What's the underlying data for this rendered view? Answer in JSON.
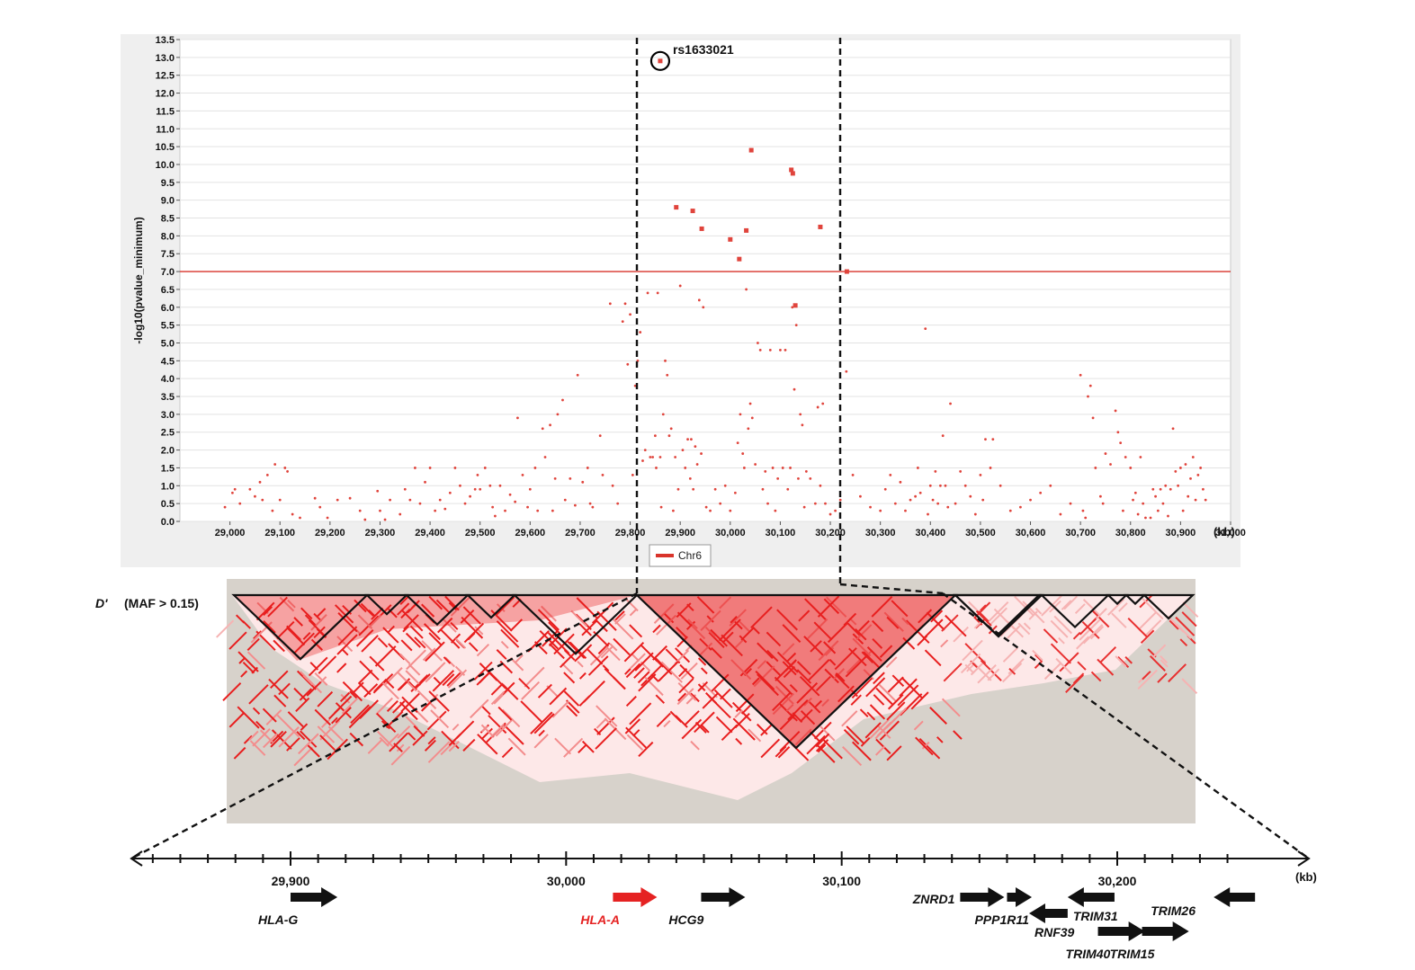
{
  "chart_data": [
    {
      "type": "scatter",
      "ylabel": "-log10(pvalue_minimum)",
      "xunit": "(kb)",
      "ylim": [
        0,
        13.5
      ],
      "xlim": [
        28900,
        31000
      ],
      "yticks": [
        "0.0",
        "0.5",
        "1.0",
        "1.5",
        "2.0",
        "2.5",
        "3.0",
        "3.5",
        "4.0",
        "4.5",
        "5.0",
        "5.5",
        "6.0",
        "6.5",
        "7.0",
        "7.5",
        "8.0",
        "8.5",
        "9.0",
        "9.5",
        "10.0",
        "10.5",
        "11.0",
        "11.5",
        "12.0",
        "12.5",
        "13.0",
        "13.5"
      ],
      "xticks": [
        "29,000",
        "29,100",
        "29,200",
        "29,300",
        "29,400",
        "29,500",
        "29,600",
        "29,700",
        "29,800",
        "29,900",
        "30,000",
        "30,100",
        "30,200",
        "30,300",
        "30,400",
        "30,500",
        "30,600",
        "30,700",
        "30,800",
        "30,900",
        "31,000"
      ],
      "legend": [
        "Chr6"
      ],
      "threshold": 7.0,
      "highlight": {
        "label": "rs1633021",
        "x": 29860,
        "y": 12.9
      },
      "color": "#e0443c",
      "points_large": [
        [
          29860,
          12.9
        ],
        [
          29892,
          8.8
        ],
        [
          29925,
          8.7
        ],
        [
          29943,
          8.2
        ],
        [
          30000,
          7.9
        ],
        [
          30018,
          7.35
        ],
        [
          30032,
          8.15
        ],
        [
          30042,
          10.4
        ],
        [
          30122,
          9.85
        ],
        [
          30125,
          9.75
        ],
        [
          30180,
          8.25
        ],
        [
          30233,
          7.0
        ],
        [
          30130,
          6.05
        ]
      ],
      "points_small": [
        [
          28990,
          0.4
        ],
        [
          29005,
          0.8
        ],
        [
          29010,
          0.9
        ],
        [
          29020,
          0.5
        ],
        [
          29040,
          0.9
        ],
        [
          29050,
          0.7
        ],
        [
          29060,
          1.1
        ],
        [
          29065,
          0.6
        ],
        [
          29075,
          1.3
        ],
        [
          29085,
          0.3
        ],
        [
          29090,
          1.6
        ],
        [
          29100,
          0.6
        ],
        [
          29110,
          1.5
        ],
        [
          29115,
          1.4
        ],
        [
          29125,
          0.2
        ],
        [
          29140,
          0.1
        ],
        [
          29170,
          0.65
        ],
        [
          29180,
          0.4
        ],
        [
          29195,
          0.1
        ],
        [
          29215,
          0.6
        ],
        [
          29240,
          0.65
        ],
        [
          29260,
          0.3
        ],
        [
          29270,
          0.05
        ],
        [
          29295,
          0.85
        ],
        [
          29300,
          0.3
        ],
        [
          29310,
          0.05
        ],
        [
          29320,
          0.6
        ],
        [
          29340,
          0.2
        ],
        [
          29350,
          0.9
        ],
        [
          29360,
          0.6
        ],
        [
          29370,
          1.5
        ],
        [
          29380,
          0.5
        ],
        [
          29390,
          1.1
        ],
        [
          29400,
          1.5
        ],
        [
          29410,
          0.3
        ],
        [
          29420,
          0.6
        ],
        [
          29430,
          0.35
        ],
        [
          29440,
          0.8
        ],
        [
          29450,
          1.5
        ],
        [
          29460,
          1.0
        ],
        [
          29470,
          0.5
        ],
        [
          29480,
          0.7
        ],
        [
          29490,
          0.9
        ],
        [
          29495,
          1.3
        ],
        [
          29500,
          0.9
        ],
        [
          29510,
          1.5
        ],
        [
          29520,
          1.0
        ],
        [
          29525,
          0.4
        ],
        [
          29530,
          0.15
        ],
        [
          29540,
          1.0
        ],
        [
          29550,
          0.3
        ],
        [
          29560,
          0.75
        ],
        [
          29570,
          0.55
        ],
        [
          29575,
          2.9
        ],
        [
          29585,
          1.3
        ],
        [
          29595,
          0.4
        ],
        [
          29600,
          0.9
        ],
        [
          29610,
          1.5
        ],
        [
          29615,
          0.3
        ],
        [
          29625,
          2.6
        ],
        [
          29630,
          1.8
        ],
        [
          29640,
          2.7
        ],
        [
          29645,
          0.3
        ],
        [
          29650,
          1.2
        ],
        [
          29655,
          3.0
        ],
        [
          29665,
          3.4
        ],
        [
          29670,
          0.6
        ],
        [
          29680,
          1.2
        ],
        [
          29690,
          0.45
        ],
        [
          29695,
          4.1
        ],
        [
          29705,
          1.1
        ],
        [
          29715,
          1.5
        ],
        [
          29720,
          0.5
        ],
        [
          29725,
          0.4
        ],
        [
          29740,
          2.4
        ],
        [
          29745,
          1.3
        ],
        [
          29760,
          6.1
        ],
        [
          29765,
          1.0
        ],
        [
          29775,
          0.5
        ],
        [
          29785,
          5.6
        ],
        [
          29790,
          6.1
        ],
        [
          29795,
          4.4
        ],
        [
          29800,
          5.8
        ],
        [
          29805,
          1.3
        ],
        [
          29810,
          3.8
        ],
        [
          29815,
          4.5
        ],
        [
          29820,
          5.3
        ],
        [
          29825,
          1.7
        ],
        [
          29830,
          2.0
        ],
        [
          29835,
          6.4
        ],
        [
          29840,
          1.8
        ],
        [
          29845,
          1.8
        ],
        [
          29850,
          2.4
        ],
        [
          29852,
          1.5
        ],
        [
          29855,
          6.4
        ],
        [
          29860,
          1.8
        ],
        [
          29862,
          0.4
        ],
        [
          29866,
          3.0
        ],
        [
          29870,
          4.5
        ],
        [
          29874,
          4.1
        ],
        [
          29878,
          2.4
        ],
        [
          29882,
          2.6
        ],
        [
          29886,
          0.3
        ],
        [
          29890,
          1.8
        ],
        [
          29896,
          0.9
        ],
        [
          29900,
          6.6
        ],
        [
          29905,
          2.0
        ],
        [
          29910,
          1.5
        ],
        [
          29915,
          2.3
        ],
        [
          29920,
          1.2
        ],
        [
          29922,
          2.3
        ],
        [
          29926,
          0.9
        ],
        [
          29930,
          2.1
        ],
        [
          29934,
          1.6
        ],
        [
          29938,
          6.2
        ],
        [
          29942,
          1.9
        ],
        [
          29946,
          6.0
        ],
        [
          29952,
          0.4
        ],
        [
          29960,
          0.3
        ],
        [
          29970,
          0.9
        ],
        [
          29980,
          0.5
        ],
        [
          29990,
          1.0
        ],
        [
          30000,
          0.3
        ],
        [
          30010,
          0.8
        ],
        [
          30015,
          2.2
        ],
        [
          30020,
          3.0
        ],
        [
          30025,
          1.9
        ],
        [
          30028,
          1.5
        ],
        [
          30032,
          6.5
        ],
        [
          30036,
          2.6
        ],
        [
          30040,
          3.3
        ],
        [
          30044,
          2.9
        ],
        [
          30050,
          1.6
        ],
        [
          30055,
          5.0
        ],
        [
          30060,
          4.8
        ],
        [
          30065,
          0.9
        ],
        [
          30070,
          1.4
        ],
        [
          30075,
          0.5
        ],
        [
          30080,
          4.8
        ],
        [
          30085,
          1.5
        ],
        [
          30090,
          0.3
        ],
        [
          30095,
          1.2
        ],
        [
          30100,
          4.8
        ],
        [
          30105,
          1.5
        ],
        [
          30110,
          4.8
        ],
        [
          30115,
          0.9
        ],
        [
          30120,
          1.5
        ],
        [
          30124,
          6.0
        ],
        [
          30128,
          3.7
        ],
        [
          30132,
          5.5
        ],
        [
          30136,
          1.2
        ],
        [
          30140,
          3.0
        ],
        [
          30144,
          2.7
        ],
        [
          30148,
          0.4
        ],
        [
          30152,
          1.4
        ],
        [
          30160,
          1.2
        ],
        [
          30170,
          0.5
        ],
        [
          30175,
          3.2
        ],
        [
          30180,
          1.0
        ],
        [
          30185,
          3.3
        ],
        [
          30190,
          0.5
        ],
        [
          30200,
          0.2
        ],
        [
          30210,
          0.3
        ],
        [
          30220,
          0.6
        ],
        [
          30232,
          4.2
        ],
        [
          30245,
          1.3
        ],
        [
          30260,
          0.7
        ],
        [
          30280,
          0.4
        ],
        [
          30300,
          0.3
        ],
        [
          30310,
          0.9
        ],
        [
          30320,
          1.3
        ],
        [
          30330,
          0.5
        ],
        [
          30340,
          1.1
        ],
        [
          30350,
          0.3
        ],
        [
          30360,
          0.6
        ],
        [
          30370,
          0.7
        ],
        [
          30375,
          1.5
        ],
        [
          30380,
          0.8
        ],
        [
          30390,
          5.4
        ],
        [
          30395,
          0.2
        ],
        [
          30400,
          1.0
        ],
        [
          30405,
          0.6
        ],
        [
          30410,
          1.4
        ],
        [
          30415,
          0.5
        ],
        [
          30420,
          1.0
        ],
        [
          30425,
          2.4
        ],
        [
          30430,
          1.0
        ],
        [
          30435,
          0.4
        ],
        [
          30440,
          3.3
        ],
        [
          30450,
          0.5
        ],
        [
          30460,
          1.4
        ],
        [
          30470,
          1.0
        ],
        [
          30480,
          0.7
        ],
        [
          30490,
          0.2
        ],
        [
          30500,
          1.3
        ],
        [
          30505,
          0.6
        ],
        [
          30510,
          2.3
        ],
        [
          30520,
          1.5
        ],
        [
          30525,
          2.3
        ],
        [
          30540,
          1.0
        ],
        [
          30560,
          0.3
        ],
        [
          30580,
          0.4
        ],
        [
          30600,
          0.6
        ],
        [
          30620,
          0.8
        ],
        [
          30640,
          1.0
        ],
        [
          30660,
          0.2
        ],
        [
          30680,
          0.5
        ],
        [
          30700,
          4.1
        ],
        [
          30705,
          0.3
        ],
        [
          30710,
          0.1
        ],
        [
          30715,
          3.5
        ],
        [
          30720,
          3.8
        ],
        [
          30725,
          2.9
        ],
        [
          30730,
          1.5
        ],
        [
          30740,
          0.7
        ],
        [
          30745,
          0.5
        ],
        [
          30750,
          1.9
        ],
        [
          30760,
          1.6
        ],
        [
          30770,
          3.1
        ],
        [
          30775,
          2.5
        ],
        [
          30780,
          2.2
        ],
        [
          30785,
          0.3
        ],
        [
          30790,
          1.8
        ],
        [
          30800,
          1.5
        ],
        [
          30805,
          0.6
        ],
        [
          30810,
          0.8
        ],
        [
          30815,
          0.2
        ],
        [
          30820,
          1.8
        ],
        [
          30825,
          0.5
        ],
        [
          30830,
          0.1
        ],
        [
          30840,
          0.1
        ],
        [
          30845,
          0.9
        ],
        [
          30850,
          0.7
        ],
        [
          30855,
          0.3
        ],
        [
          30860,
          0.9
        ],
        [
          30865,
          0.5
        ],
        [
          30870,
          1.0
        ],
        [
          30875,
          0.15
        ],
        [
          30880,
          0.9
        ],
        [
          30885,
          2.6
        ],
        [
          30890,
          1.4
        ],
        [
          30895,
          1.0
        ],
        [
          30900,
          1.5
        ],
        [
          30905,
          0.3
        ],
        [
          30910,
          1.6
        ],
        [
          30915,
          0.7
        ],
        [
          30920,
          1.2
        ],
        [
          30925,
          1.8
        ],
        [
          30930,
          0.6
        ],
        [
          30935,
          1.3
        ],
        [
          30940,
          1.5
        ],
        [
          30945,
          0.9
        ],
        [
          30950,
          0.6
        ]
      ]
    },
    {
      "type": "heatmap",
      "title_prefix": "D'",
      "title_suffix": "(MAF > 0.15)"
    },
    {
      "type": "gene-track",
      "xunit": "(kb)",
      "xlim": [
        29840,
        30240
      ],
      "xticks": [
        "29,900",
        "30,000",
        "30,100",
        "30,200"
      ],
      "genes": [
        {
          "name": "HLA-G",
          "start": 29900,
          "end": 29917,
          "strand": "+",
          "highlight": false,
          "label_pos": "below-left"
        },
        {
          "name": "HLA-A",
          "start": 30017,
          "end": 30033,
          "strand": "+",
          "highlight": true,
          "label_pos": "below-left"
        },
        {
          "name": "HCG9",
          "start": 30049,
          "end": 30065,
          "strand": "+",
          "highlight": false,
          "label_pos": "below-left"
        },
        {
          "name": "ZNRD1",
          "start": 30143,
          "end": 30159,
          "strand": "+",
          "highlight": false,
          "label_pos": "left"
        },
        {
          "name": "PPP1R11",
          "start": 30160,
          "end": 30169,
          "strand": "+",
          "highlight": false,
          "label_pos": "below-left"
        },
        {
          "name": "RNF39",
          "start": 30168,
          "end": 30182,
          "strand": "-",
          "highlight": false,
          "label_pos": "below"
        },
        {
          "name": "TRIM31",
          "start": 30182,
          "end": 30199,
          "strand": "-",
          "highlight": false,
          "label_pos": "below"
        },
        {
          "name": "TRIM40",
          "start": 30193,
          "end": 30210,
          "strand": "+",
          "highlight": false,
          "label_pos": "below-left"
        },
        {
          "name": "TRIM15",
          "start": 30209,
          "end": 30226,
          "strand": "+",
          "highlight": false,
          "label_pos": "below-left"
        },
        {
          "name": "TRIM26",
          "start": 30235,
          "end": 30250,
          "strand": "-",
          "highlight": false,
          "label_pos": "above-left"
        }
      ]
    }
  ]
}
